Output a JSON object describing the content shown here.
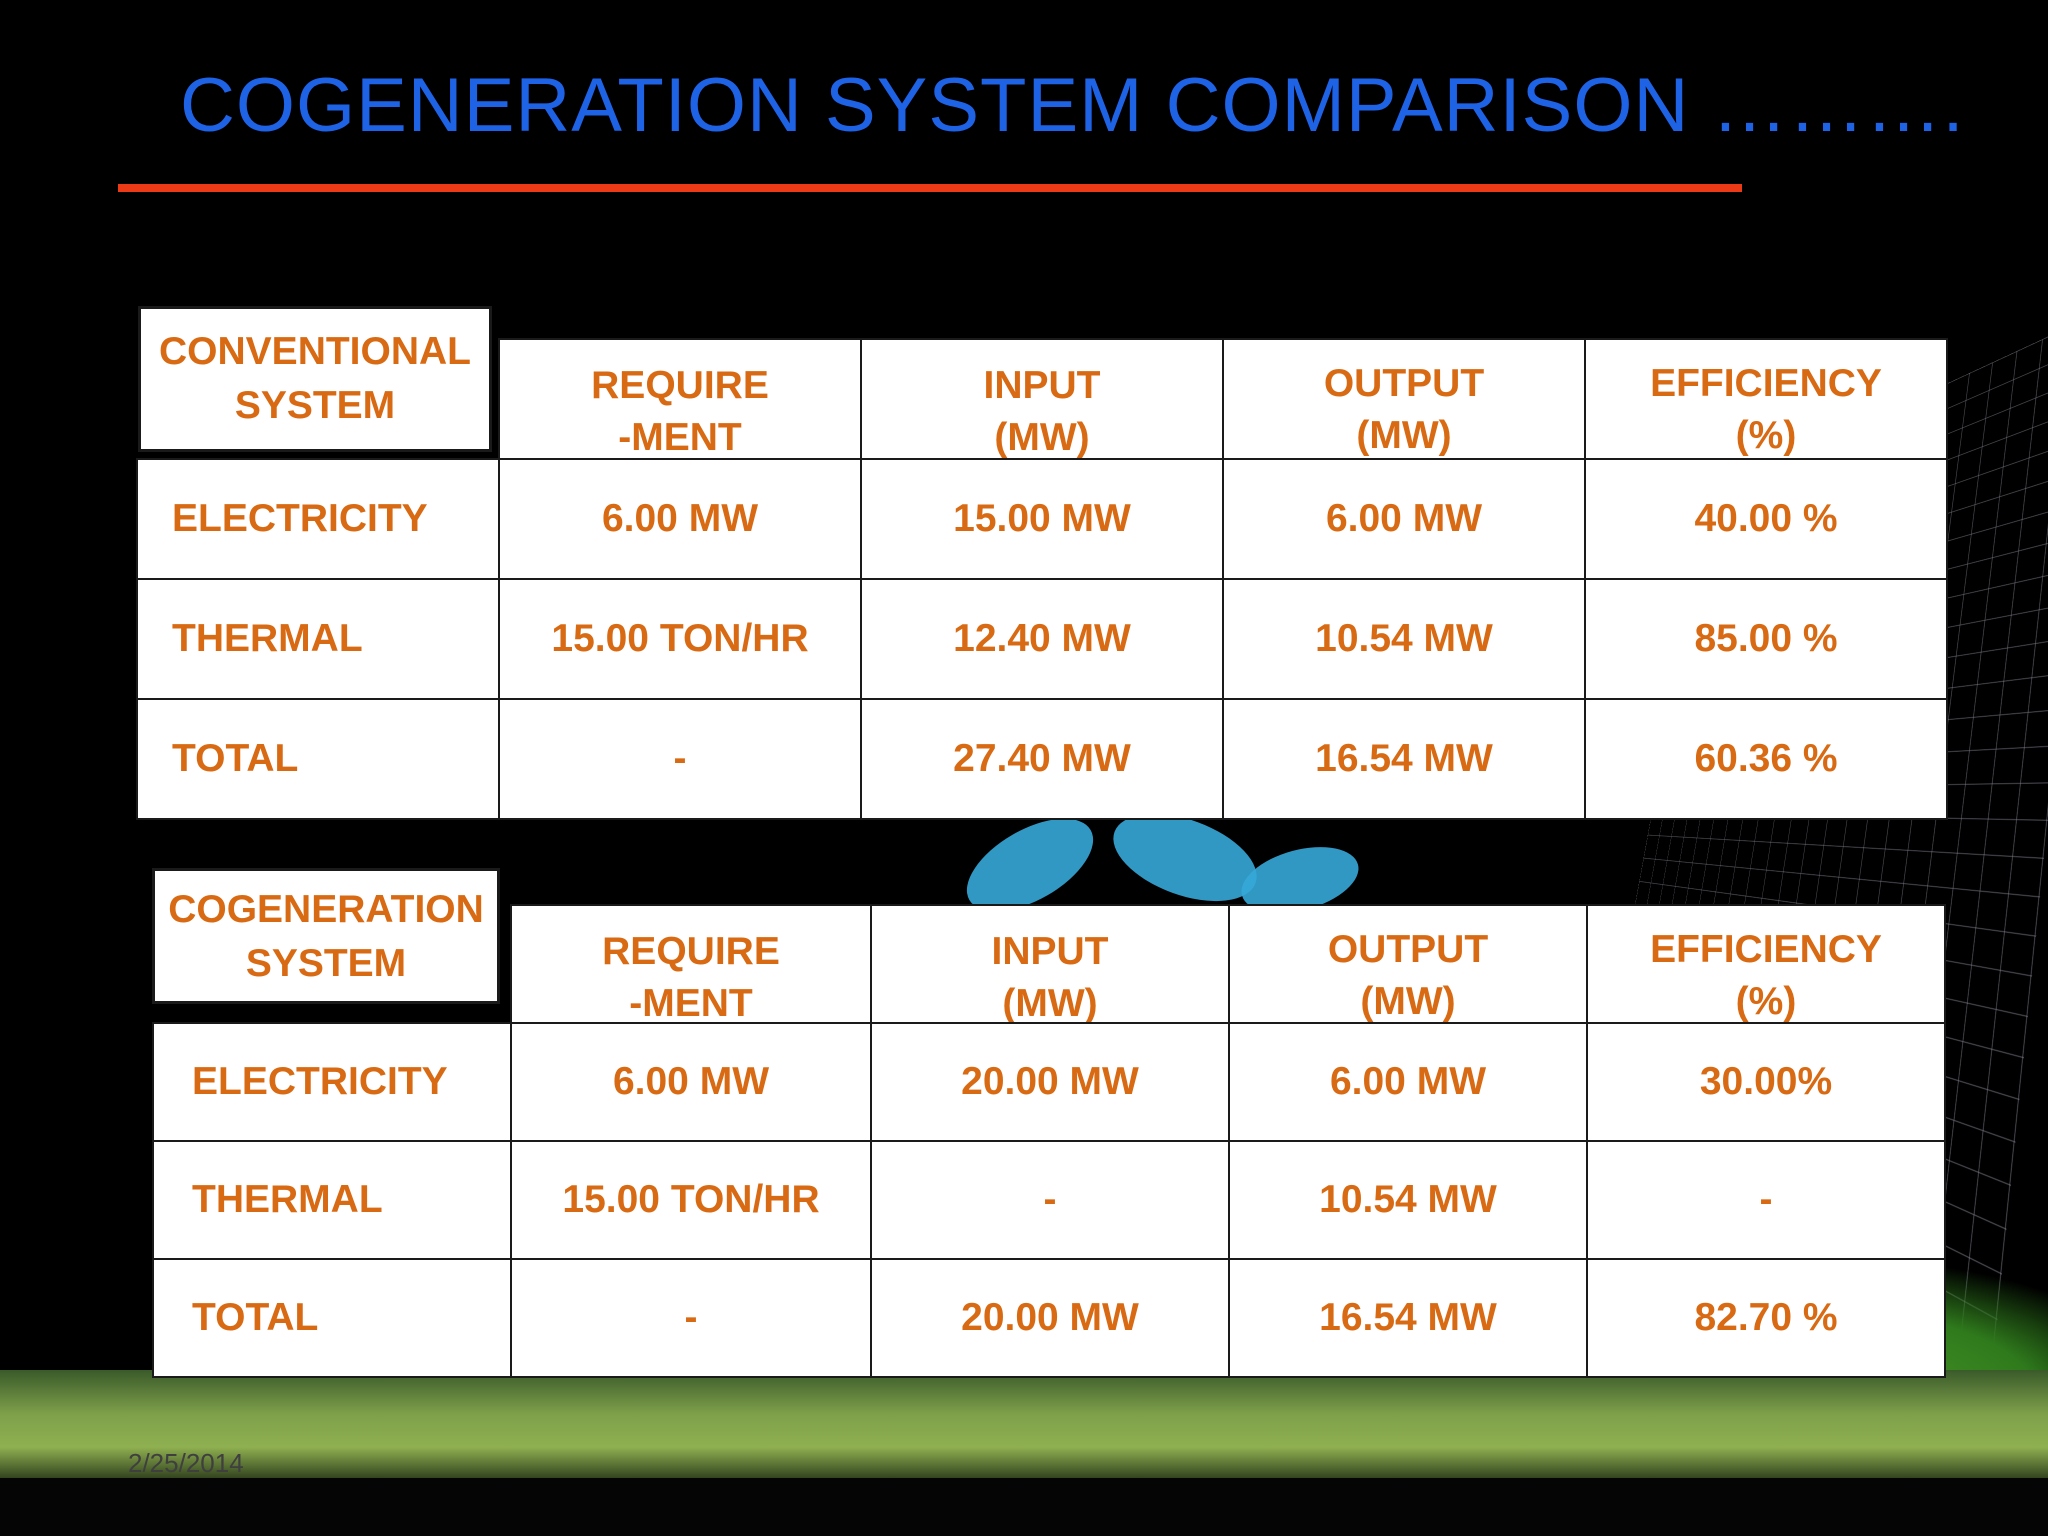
{
  "slide": {
    "title": "COGENERATION SYSTEM COMPARISON ……….",
    "date": "2/25/2014"
  },
  "conventional": {
    "corner_line1": "CONVENTIONAL",
    "corner_line2": "SYSTEM",
    "headers": [
      {
        "line1": "REQUIRE",
        "line2": "-MENT"
      },
      {
        "line1": "INPUT",
        "line2": "(MW)"
      },
      {
        "line1": "OUTPUT",
        "line2": "(MW)"
      },
      {
        "line1": "EFFICIENCY",
        "line2": "(%)"
      }
    ],
    "rows": [
      {
        "label": "ELECTRICITY",
        "cells": [
          "6.00 MW",
          "15.00 MW",
          "6.00 MW",
          "40.00 %"
        ]
      },
      {
        "label": "THERMAL",
        "cells": [
          "15.00 TON/HR",
          "12.40 MW",
          "10.54 MW",
          "85.00 %"
        ]
      },
      {
        "label": "TOTAL",
        "cells": [
          "-",
          "27.40 MW",
          "16.54 MW",
          "60.36 %"
        ]
      }
    ]
  },
  "cogeneration": {
    "corner_line1": "COGENERATION",
    "corner_line2": "SYSTEM",
    "headers": [
      {
        "line1": "REQUIRE",
        "line2": "-MENT"
      },
      {
        "line1": "INPUT",
        "line2": "(MW)"
      },
      {
        "line1": "OUTPUT",
        "line2": "(MW)"
      },
      {
        "line1": "EFFICIENCY",
        "line2": "(%)"
      }
    ],
    "rows": [
      {
        "label": "ELECTRICITY",
        "cells": [
          "6.00 MW",
          "20.00 MW",
          "6.00 MW",
          "30.00%"
        ]
      },
      {
        "label": "THERMAL",
        "cells": [
          "15.00 TON/HR",
          "-",
          "10.54 MW",
          "-"
        ]
      },
      {
        "label": "TOTAL",
        "cells": [
          "-",
          "20.00 MW",
          "16.54 MW",
          "82.70 %"
        ]
      }
    ]
  },
  "colors": {
    "title": "#1e63e6",
    "rule": "#ec3a16",
    "table_text": "#d96a14"
  }
}
